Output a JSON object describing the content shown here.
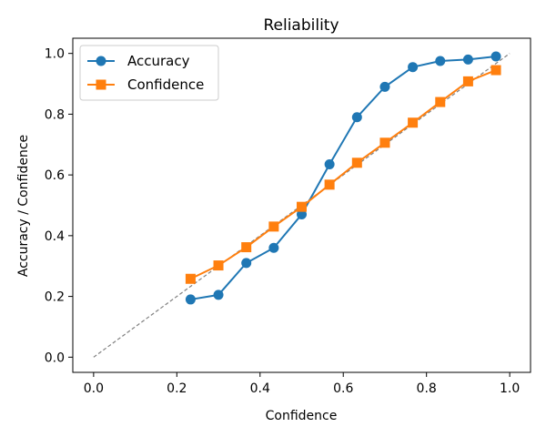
{
  "chart_data": {
    "type": "line",
    "title": "Reliability",
    "xlabel": "Confidence",
    "ylabel": "Accuracy / Confidence",
    "xlim": [
      -0.05,
      1.05
    ],
    "ylim": [
      -0.05,
      1.05
    ],
    "xticks": [
      0.0,
      0.2,
      0.4,
      0.6,
      0.8,
      1.0
    ],
    "yticks": [
      0.0,
      0.2,
      0.4,
      0.6,
      0.8,
      1.0
    ],
    "xtick_labels": [
      "0.0",
      "0.2",
      "0.4",
      "0.6",
      "0.8",
      "1.0"
    ],
    "ytick_labels": [
      "0.0",
      "0.2",
      "0.4",
      "0.6",
      "0.8",
      "1.0"
    ],
    "grid": false,
    "legend_position": "top-left",
    "reference_line": {
      "x": [
        0.0,
        1.0
      ],
      "y": [
        0.0,
        1.0
      ],
      "style": "dashed",
      "color": "#808080"
    },
    "x": [
      0.233,
      0.3,
      0.367,
      0.433,
      0.5,
      0.567,
      0.633,
      0.7,
      0.767,
      0.833,
      0.9,
      0.967
    ],
    "series": [
      {
        "name": "Accuracy",
        "color": "#1f77b4",
        "marker": "circle",
        "values": [
          0.19,
          0.205,
          0.31,
          0.36,
          0.47,
          0.635,
          0.79,
          0.89,
          0.955,
          0.975,
          0.98,
          0.99
        ]
      },
      {
        "name": "Confidence",
        "color": "#ff7f0e",
        "marker": "square",
        "values": [
          0.258,
          0.302,
          0.362,
          0.43,
          0.495,
          0.568,
          0.64,
          0.706,
          0.772,
          0.84,
          0.908,
          0.945
        ]
      }
    ]
  }
}
